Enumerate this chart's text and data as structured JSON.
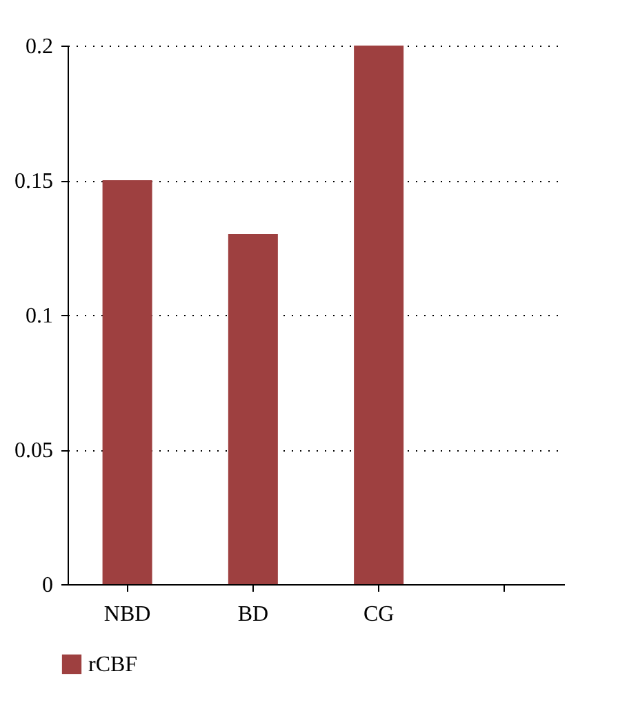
{
  "chart_data": {
    "type": "bar",
    "categories": [
      "NBD",
      "BD",
      "CG",
      null
    ],
    "series": [
      {
        "name": "rCBF",
        "color": "#9e4040",
        "values": [
          0.15,
          0.13,
          0.2,
          null
        ]
      }
    ],
    "ylim": [
      0,
      0.2
    ],
    "yticks": [
      0,
      0.05,
      0.1,
      0.15,
      0.2
    ],
    "grid": "y",
    "legend": "bottom left"
  }
}
